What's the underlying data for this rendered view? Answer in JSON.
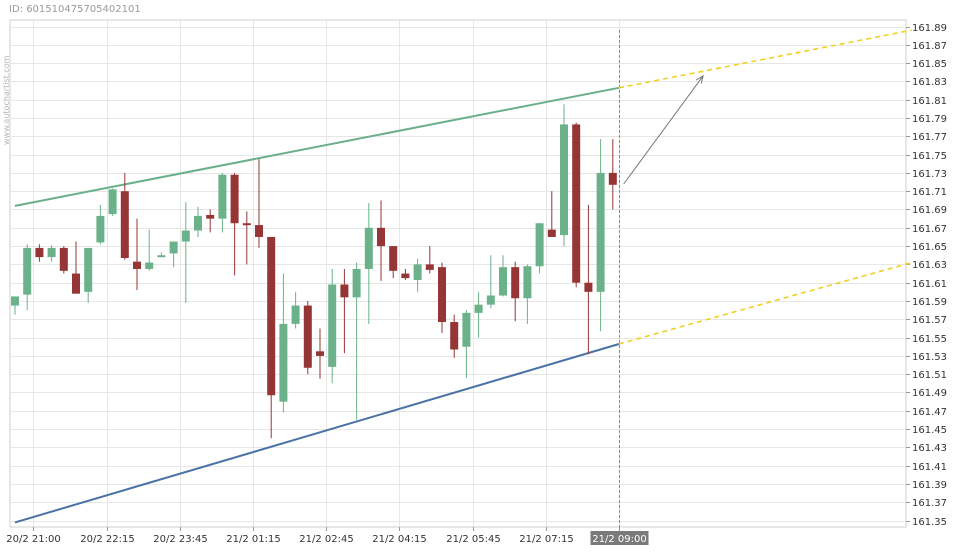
{
  "header": {
    "id_text": "ID: 601510475705402101"
  },
  "watermark": "www.autochartist.com",
  "colors": {
    "bull": "#6bb28a",
    "bear": "#953535",
    "upper_trend": "#6aaf8a",
    "lower_trend": "#4a72a4",
    "projection": "#f0d020",
    "arrow": "#777777",
    "grid": "#e6e6e6",
    "current_time_box": "#7a7a7a"
  },
  "chart_data": {
    "type": "candlestick",
    "title": "",
    "xlabel": "",
    "ylabel": "",
    "ylim": [
      161.34,
      161.9
    ],
    "y_ticks": [
      "161.89",
      "161.87",
      "161.85",
      "161.83",
      "161.81",
      "161.79",
      "161.77",
      "161.75",
      "161.73",
      "161.71",
      "161.69",
      "161.67",
      "161.65",
      "161.63",
      "161.61",
      "161.59",
      "161.57",
      "161.55",
      "161.53",
      "161.51",
      "161.49",
      "161.47",
      "161.45",
      "161.43",
      "161.41",
      "161.39",
      "161.37",
      "161.35"
    ],
    "x_ticks": [
      {
        "bar": 1.5,
        "label": "20/2 21:00"
      },
      {
        "bar": 7.5,
        "label": "20/2 22:15"
      },
      {
        "bar": 13.5,
        "label": "20/2 23:45"
      },
      {
        "bar": 19.5,
        "label": "21/2 01:15"
      },
      {
        "bar": 25.5,
        "label": "21/2 02:45"
      },
      {
        "bar": 31.5,
        "label": "21/2 04:15"
      },
      {
        "bar": 37.5,
        "label": "21/2 05:45"
      },
      {
        "bar": 43.5,
        "label": "21/2 07:15"
      },
      {
        "bar": 49.5,
        "label": "21/2 09:00",
        "highlight": true
      }
    ],
    "candles": [
      {
        "o": 161.585,
        "h": 161.595,
        "l": 161.575,
        "c": 161.595
      },
      {
        "o": 161.597,
        "h": 161.652,
        "l": 161.58,
        "c": 161.648
      },
      {
        "o": 161.648,
        "h": 161.652,
        "l": 161.633,
        "c": 161.638
      },
      {
        "o": 161.638,
        "h": 161.651,
        "l": 161.633,
        "c": 161.648
      },
      {
        "o": 161.648,
        "h": 161.65,
        "l": 161.62,
        "c": 161.623
      },
      {
        "o": 161.62,
        "h": 161.655,
        "l": 161.598,
        "c": 161.598
      },
      {
        "o": 161.6,
        "h": 161.648,
        "l": 161.588,
        "c": 161.648
      },
      {
        "o": 161.654,
        "h": 161.695,
        "l": 161.652,
        "c": 161.683
      },
      {
        "o": 161.685,
        "h": 161.713,
        "l": 161.683,
        "c": 161.712
      },
      {
        "o": 161.71,
        "h": 161.73,
        "l": 161.635,
        "c": 161.637
      },
      {
        "o": 161.633,
        "h": 161.68,
        "l": 161.602,
        "c": 161.625
      },
      {
        "o": 161.625,
        "h": 161.668,
        "l": 161.623,
        "c": 161.632
      },
      {
        "o": 161.639,
        "h": 161.643,
        "l": 161.64,
        "c": 161.64
      },
      {
        "o": 161.642,
        "h": 161.65,
        "l": 161.627,
        "c": 161.655
      },
      {
        "o": 161.655,
        "h": 161.698,
        "l": 161.588,
        "c": 161.667
      },
      {
        "o": 161.667,
        "h": 161.693,
        "l": 161.66,
        "c": 161.683
      },
      {
        "o": 161.684,
        "h": 161.69,
        "l": 161.665,
        "c": 161.68
      },
      {
        "o": 161.68,
        "h": 161.73,
        "l": 161.665,
        "c": 161.728
      },
      {
        "o": 161.728,
        "h": 161.73,
        "l": 161.618,
        "c": 161.675
      },
      {
        "o": 161.675,
        "h": 161.688,
        "l": 161.63,
        "c": 161.673
      },
      {
        "o": 161.673,
        "h": 161.745,
        "l": 161.648,
        "c": 161.66
      },
      {
        "o": 161.66,
        "h": 161.66,
        "l": 161.44,
        "c": 161.487
      },
      {
        "o": 161.48,
        "h": 161.62,
        "l": 161.468,
        "c": 161.565
      },
      {
        "o": 161.565,
        "h": 161.6,
        "l": 161.56,
        "c": 161.585
      },
      {
        "o": 161.585,
        "h": 161.59,
        "l": 161.51,
        "c": 161.517
      },
      {
        "o": 161.535,
        "h": 161.56,
        "l": 161.505,
        "c": 161.53
      },
      {
        "o": 161.518,
        "h": 161.625,
        "l": 161.5,
        "c": 161.608
      },
      {
        "o": 161.608,
        "h": 161.625,
        "l": 161.533,
        "c": 161.594
      },
      {
        "o": 161.594,
        "h": 161.632,
        "l": 161.46,
        "c": 161.625
      },
      {
        "o": 161.625,
        "h": 161.697,
        "l": 161.565,
        "c": 161.67
      },
      {
        "o": 161.67,
        "h": 161.7,
        "l": 161.612,
        "c": 161.65
      },
      {
        "o": 161.65,
        "h": 161.645,
        "l": 161.615,
        "c": 161.623
      },
      {
        "o": 161.62,
        "h": 161.625,
        "l": 161.613,
        "c": 161.615
      },
      {
        "o": 161.613,
        "h": 161.636,
        "l": 161.6,
        "c": 161.63
      },
      {
        "o": 161.63,
        "h": 161.65,
        "l": 161.62,
        "c": 161.624
      },
      {
        "o": 161.627,
        "h": 161.632,
        "l": 161.555,
        "c": 161.567
      },
      {
        "o": 161.567,
        "h": 161.575,
        "l": 161.528,
        "c": 161.537
      },
      {
        "o": 161.54,
        "h": 161.58,
        "l": 161.506,
        "c": 161.577
      },
      {
        "o": 161.577,
        "h": 161.6,
        "l": 161.55,
        "c": 161.586
      },
      {
        "o": 161.586,
        "h": 161.64,
        "l": 161.582,
        "c": 161.596
      },
      {
        "o": 161.596,
        "h": 161.64,
        "l": 161.595,
        "c": 161.627
      },
      {
        "o": 161.627,
        "h": 161.633,
        "l": 161.568,
        "c": 161.593
      },
      {
        "o": 161.593,
        "h": 161.63,
        "l": 161.565,
        "c": 161.628
      },
      {
        "o": 161.628,
        "h": 161.675,
        "l": 161.62,
        "c": 161.675
      },
      {
        "o": 161.668,
        "h": 161.71,
        "l": 161.663,
        "c": 161.66
      },
      {
        "o": 161.662,
        "h": 161.805,
        "l": 161.65,
        "c": 161.783
      },
      {
        "o": 161.783,
        "h": 161.785,
        "l": 161.605,
        "c": 161.61
      },
      {
        "o": 161.61,
        "h": 161.695,
        "l": 161.532,
        "c": 161.6
      },
      {
        "o": 161.6,
        "h": 161.767,
        "l": 161.557,
        "c": 161.73
      },
      {
        "o": 161.73,
        "h": 161.767,
        "l": 161.69,
        "c": 161.717
      }
    ],
    "trendlines": [
      {
        "name": "upper",
        "from": {
          "bar": 0,
          "y": 161.694
        },
        "to": {
          "bar": 49.5,
          "y": 161.823
        }
      },
      {
        "name": "lower",
        "from": {
          "bar": 0,
          "y": 161.348
        },
        "to": {
          "bar": 49.5,
          "y": 161.543
        }
      }
    ],
    "projections": [
      {
        "name": "upper-projection",
        "from": {
          "bar": 49.5,
          "y": 161.823
        },
        "to": {
          "bar": 73.5,
          "y": 161.886
        }
      },
      {
        "name": "lower-projection",
        "from": {
          "bar": 49.5,
          "y": 161.543
        },
        "to": {
          "bar": 73.5,
          "y": 161.632
        }
      }
    ],
    "arrow": {
      "from": {
        "bar": 49.9,
        "y": 161.718
      },
      "to": {
        "bar": 56.4,
        "y": 161.836
      }
    },
    "current_time_bar": 49.5
  }
}
